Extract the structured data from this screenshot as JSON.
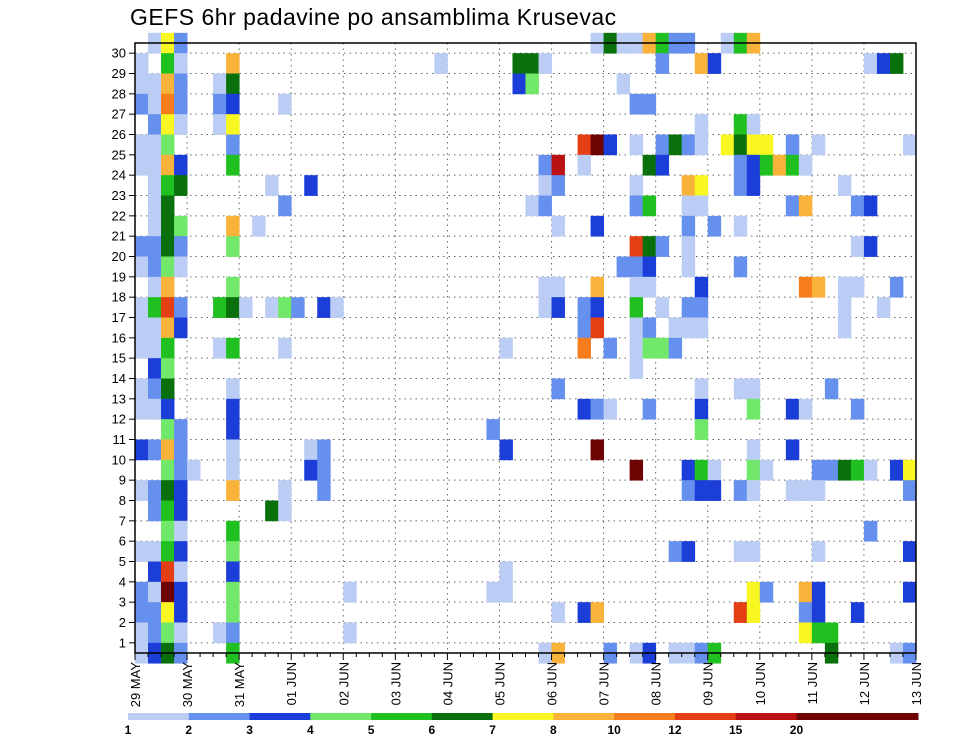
{
  "chart_data": {
    "type": "heatmap",
    "title": "GEFS 6hr padavine po ansamblima Krusevac",
    "xlabel": "",
    "ylabel": "",
    "x_tick_labels": [
      "29 MAY",
      "30 MAY",
      "31 MAY",
      "01 JUN",
      "02 JUN",
      "03 JUN",
      "04 JUN",
      "05 JUN",
      "06 JUN",
      "07 JUN",
      "08 JUN",
      "09 JUN",
      "10 JUN",
      "11 JUN",
      "12 JUN",
      "13 JUN"
    ],
    "y_tick_labels": [
      "1",
      "2",
      "3",
      "4",
      "5",
      "6",
      "7",
      "8",
      "9",
      "10",
      "11",
      "12",
      "13",
      "14",
      "15",
      "16",
      "17",
      "18",
      "19",
      "20",
      "21",
      "22",
      "23",
      "24",
      "25",
      "26",
      "27",
      "28",
      "29",
      "30"
    ],
    "columns_per_day": 4,
    "time_steps": 60,
    "members": 30,
    "grid": true,
    "legend_position": "bottom",
    "levels": [
      {
        "label": "1",
        "color": "#bccdf5"
      },
      {
        "label": "2",
        "color": "#6690ee"
      },
      {
        "label": "3",
        "color": "#1c3ed8"
      },
      {
        "label": "4",
        "color": "#72e86a"
      },
      {
        "label": "5",
        "color": "#1fc020"
      },
      {
        "label": "6",
        "color": "#0a700b"
      },
      {
        "label": "7",
        "color": "#f9f721"
      },
      {
        "label": "8",
        "color": "#f9b23a"
      },
      {
        "label": "10",
        "color": "#f67d1b"
      },
      {
        "label": "12",
        "color": "#e43e14"
      },
      {
        "label": "15",
        "color": "#ba1212"
      },
      {
        "label": "20",
        "color": "#6d0303"
      },
      {
        "label": "",
        "color": "#6d0303"
      }
    ],
    "cells": [
      [
        1,
        30,
        0
      ],
      [
        2,
        30,
        6
      ],
      [
        3,
        30,
        1
      ],
      [
        35,
        30,
        0
      ],
      [
        36,
        30,
        5
      ],
      [
        37,
        30,
        0
      ],
      [
        38,
        30,
        0
      ],
      [
        39,
        30,
        7
      ],
      [
        40,
        30,
        4
      ],
      [
        41,
        30,
        1
      ],
      [
        42,
        30,
        1
      ],
      [
        45,
        30,
        0
      ],
      [
        46,
        30,
        4
      ],
      [
        47,
        30,
        7
      ],
      [
        0,
        29,
        0
      ],
      [
        2,
        29,
        4
      ],
      [
        3,
        29,
        0
      ],
      [
        7,
        29,
        7
      ],
      [
        23,
        29,
        0
      ],
      [
        29,
        29,
        5
      ],
      [
        30,
        29,
        5
      ],
      [
        31,
        29,
        0
      ],
      [
        40,
        29,
        1
      ],
      [
        43,
        29,
        7
      ],
      [
        44,
        29,
        2
      ],
      [
        56,
        29,
        0
      ],
      [
        57,
        29,
        2
      ],
      [
        58,
        29,
        5
      ],
      [
        0,
        28,
        0
      ],
      [
        1,
        28,
        0
      ],
      [
        2,
        28,
        7
      ],
      [
        3,
        28,
        1
      ],
      [
        6,
        28,
        0
      ],
      [
        7,
        28,
        5
      ],
      [
        29,
        28,
        2
      ],
      [
        30,
        28,
        3
      ],
      [
        37,
        28,
        0
      ],
      [
        0,
        27,
        1
      ],
      [
        1,
        27,
        0
      ],
      [
        2,
        27,
        8
      ],
      [
        3,
        27,
        1
      ],
      [
        6,
        27,
        1
      ],
      [
        7,
        27,
        2
      ],
      [
        11,
        27,
        0
      ],
      [
        38,
        27,
        1
      ],
      [
        39,
        27,
        1
      ],
      [
        1,
        26,
        1
      ],
      [
        2,
        26,
        6
      ],
      [
        3,
        26,
        0
      ],
      [
        6,
        26,
        0
      ],
      [
        7,
        26,
        6
      ],
      [
        43,
        26,
        0
      ],
      [
        46,
        26,
        4
      ],
      [
        47,
        26,
        0
      ],
      [
        0,
        25,
        0
      ],
      [
        1,
        25,
        0
      ],
      [
        2,
        25,
        3
      ],
      [
        7,
        25,
        1
      ],
      [
        34,
        25,
        9
      ],
      [
        35,
        25,
        11
      ],
      [
        36,
        25,
        2
      ],
      [
        38,
        25,
        0
      ],
      [
        40,
        25,
        1
      ],
      [
        41,
        25,
        5
      ],
      [
        42,
        25,
        1
      ],
      [
        43,
        25,
        0
      ],
      [
        45,
        25,
        6
      ],
      [
        46,
        25,
        5
      ],
      [
        47,
        25,
        6
      ],
      [
        48,
        25,
        6
      ],
      [
        50,
        25,
        1
      ],
      [
        52,
        25,
        0
      ],
      [
        59,
        25,
        0
      ],
      [
        0,
        24,
        0
      ],
      [
        1,
        24,
        0
      ],
      [
        2,
        24,
        7
      ],
      [
        3,
        24,
        2
      ],
      [
        7,
        24,
        4
      ],
      [
        31,
        24,
        1
      ],
      [
        32,
        24,
        10
      ],
      [
        34,
        24,
        0
      ],
      [
        39,
        24,
        5
      ],
      [
        40,
        24,
        2
      ],
      [
        46,
        24,
        1
      ],
      [
        47,
        24,
        2
      ],
      [
        48,
        24,
        4
      ],
      [
        49,
        24,
        7
      ],
      [
        50,
        24,
        4
      ],
      [
        51,
        24,
        0
      ],
      [
        1,
        23,
        0
      ],
      [
        2,
        23,
        4
      ],
      [
        3,
        23,
        5
      ],
      [
        10,
        23,
        0
      ],
      [
        13,
        23,
        2
      ],
      [
        31,
        23,
        0
      ],
      [
        32,
        23,
        1
      ],
      [
        38,
        23,
        0
      ],
      [
        42,
        23,
        7
      ],
      [
        43,
        23,
        6
      ],
      [
        46,
        23,
        1
      ],
      [
        47,
        23,
        2
      ],
      [
        54,
        23,
        0
      ],
      [
        1,
        22,
        0
      ],
      [
        2,
        22,
        5
      ],
      [
        11,
        22,
        1
      ],
      [
        30,
        22,
        0
      ],
      [
        31,
        22,
        1
      ],
      [
        38,
        22,
        1
      ],
      [
        39,
        22,
        4
      ],
      [
        42,
        22,
        0
      ],
      [
        43,
        22,
        0
      ],
      [
        50,
        22,
        1
      ],
      [
        51,
        22,
        7
      ],
      [
        55,
        22,
        1
      ],
      [
        56,
        22,
        2
      ],
      [
        1,
        21,
        0
      ],
      [
        2,
        21,
        5
      ],
      [
        3,
        21,
        3
      ],
      [
        7,
        21,
        7
      ],
      [
        9,
        21,
        0
      ],
      [
        32,
        21,
        0
      ],
      [
        35,
        21,
        2
      ],
      [
        42,
        21,
        1
      ],
      [
        44,
        21,
        1
      ],
      [
        46,
        21,
        0
      ],
      [
        0,
        20,
        1
      ],
      [
        1,
        20,
        1
      ],
      [
        2,
        20,
        5
      ],
      [
        3,
        20,
        1
      ],
      [
        7,
        20,
        3
      ],
      [
        38,
        20,
        9
      ],
      [
        39,
        20,
        5
      ],
      [
        40,
        20,
        1
      ],
      [
        42,
        20,
        0
      ],
      [
        55,
        20,
        0
      ],
      [
        56,
        20,
        2
      ],
      [
        0,
        19,
        0
      ],
      [
        1,
        19,
        1
      ],
      [
        2,
        19,
        3
      ],
      [
        3,
        19,
        0
      ],
      [
        37,
        19,
        1
      ],
      [
        38,
        19,
        1
      ],
      [
        39,
        19,
        2
      ],
      [
        42,
        19,
        0
      ],
      [
        46,
        19,
        1
      ],
      [
        1,
        18,
        0
      ],
      [
        2,
        18,
        7
      ],
      [
        7,
        18,
        3
      ],
      [
        31,
        18,
        0
      ],
      [
        32,
        18,
        0
      ],
      [
        35,
        18,
        7
      ],
      [
        38,
        18,
        0
      ],
      [
        39,
        18,
        0
      ],
      [
        43,
        18,
        2
      ],
      [
        51,
        18,
        8
      ],
      [
        52,
        18,
        7
      ],
      [
        54,
        18,
        0
      ],
      [
        55,
        18,
        0
      ],
      [
        58,
        18,
        1
      ],
      [
        0,
        17,
        0
      ],
      [
        1,
        17,
        4
      ],
      [
        2,
        17,
        9
      ],
      [
        3,
        17,
        1
      ],
      [
        6,
        17,
        4
      ],
      [
        7,
        17,
        5
      ],
      [
        8,
        17,
        0
      ],
      [
        10,
        17,
        0
      ],
      [
        11,
        17,
        3
      ],
      [
        12,
        17,
        1
      ],
      [
        14,
        17,
        2
      ],
      [
        15,
        17,
        0
      ],
      [
        31,
        17,
        0
      ],
      [
        32,
        17,
        2
      ],
      [
        34,
        17,
        1
      ],
      [
        35,
        17,
        2
      ],
      [
        38,
        17,
        4
      ],
      [
        40,
        17,
        0
      ],
      [
        42,
        17,
        1
      ],
      [
        43,
        17,
        1
      ],
      [
        54,
        17,
        0
      ],
      [
        57,
        17,
        0
      ],
      [
        0,
        16,
        0
      ],
      [
        1,
        16,
        0
      ],
      [
        2,
        16,
        7
      ],
      [
        3,
        16,
        2
      ],
      [
        34,
        16,
        1
      ],
      [
        35,
        16,
        9
      ],
      [
        38,
        16,
        0
      ],
      [
        39,
        16,
        1
      ],
      [
        41,
        16,
        0
      ],
      [
        42,
        16,
        0
      ],
      [
        43,
        16,
        0
      ],
      [
        54,
        16,
        0
      ],
      [
        0,
        15,
        0
      ],
      [
        1,
        15,
        0
      ],
      [
        2,
        15,
        4
      ],
      [
        6,
        15,
        0
      ],
      [
        7,
        15,
        4
      ],
      [
        11,
        15,
        0
      ],
      [
        28,
        15,
        0
      ],
      [
        34,
        15,
        8
      ],
      [
        36,
        15,
        1
      ],
      [
        38,
        15,
        0
      ],
      [
        39,
        15,
        3
      ],
      [
        40,
        15,
        3
      ],
      [
        41,
        15,
        1
      ],
      [
        1,
        14,
        2
      ],
      [
        2,
        14,
        3
      ],
      [
        38,
        14,
        0
      ],
      [
        0,
        13,
        0
      ],
      [
        1,
        13,
        1
      ],
      [
        2,
        13,
        5
      ],
      [
        7,
        13,
        0
      ],
      [
        32,
        13,
        1
      ],
      [
        43,
        13,
        0
      ],
      [
        46,
        13,
        0
      ],
      [
        47,
        13,
        0
      ],
      [
        53,
        13,
        1
      ],
      [
        0,
        12,
        0
      ],
      [
        1,
        12,
        0
      ],
      [
        2,
        12,
        2
      ],
      [
        7,
        12,
        2
      ],
      [
        34,
        12,
        2
      ],
      [
        35,
        12,
        1
      ],
      [
        36,
        12,
        0
      ],
      [
        39,
        12,
        1
      ],
      [
        43,
        12,
        2
      ],
      [
        47,
        12,
        3
      ],
      [
        50,
        12,
        2
      ],
      [
        51,
        12,
        0
      ],
      [
        55,
        12,
        1
      ],
      [
        2,
        11,
        3
      ],
      [
        3,
        11,
        1
      ],
      [
        7,
        11,
        2
      ],
      [
        27,
        11,
        1
      ],
      [
        43,
        11,
        3
      ],
      [
        0,
        10,
        2
      ],
      [
        1,
        10,
        1
      ],
      [
        2,
        10,
        7
      ],
      [
        3,
        10,
        1
      ],
      [
        7,
        10,
        0
      ],
      [
        13,
        10,
        0
      ],
      [
        14,
        10,
        1
      ],
      [
        28,
        10,
        2
      ],
      [
        35,
        10,
        11
      ],
      [
        47,
        10,
        0
      ],
      [
        50,
        10,
        2
      ],
      [
        2,
        9,
        3
      ],
      [
        3,
        9,
        1
      ],
      [
        4,
        9,
        0
      ],
      [
        7,
        9,
        0
      ],
      [
        13,
        9,
        2
      ],
      [
        14,
        9,
        1
      ],
      [
        38,
        9,
        11
      ],
      [
        42,
        9,
        2
      ],
      [
        43,
        9,
        4
      ],
      [
        44,
        9,
        0
      ],
      [
        47,
        9,
        3
      ],
      [
        48,
        9,
        0
      ],
      [
        52,
        9,
        1
      ],
      [
        53,
        9,
        1
      ],
      [
        54,
        9,
        5
      ],
      [
        55,
        9,
        4
      ],
      [
        56,
        9,
        0
      ],
      [
        58,
        9,
        2
      ],
      [
        59,
        9,
        6
      ],
      [
        0,
        8,
        0
      ],
      [
        1,
        8,
        1
      ],
      [
        2,
        8,
        5
      ],
      [
        3,
        8,
        2
      ],
      [
        7,
        8,
        7
      ],
      [
        11,
        8,
        0
      ],
      [
        14,
        8,
        1
      ],
      [
        42,
        8,
        1
      ],
      [
        43,
        8,
        2
      ],
      [
        44,
        8,
        2
      ],
      [
        46,
        8,
        1
      ],
      [
        47,
        8,
        0
      ],
      [
        50,
        8,
        0
      ],
      [
        51,
        8,
        0
      ],
      [
        52,
        8,
        0
      ],
      [
        59,
        8,
        1
      ],
      [
        1,
        7,
        1
      ],
      [
        2,
        7,
        4
      ],
      [
        3,
        7,
        2
      ],
      [
        10,
        7,
        5
      ],
      [
        11,
        7,
        0
      ],
      [
        2,
        6,
        3
      ],
      [
        3,
        6,
        0
      ],
      [
        7,
        6,
        4
      ],
      [
        56,
        6,
        1
      ],
      [
        0,
        5,
        0
      ],
      [
        1,
        5,
        0
      ],
      [
        2,
        5,
        4
      ],
      [
        3,
        5,
        2
      ],
      [
        7,
        5,
        3
      ],
      [
        41,
        5,
        1
      ],
      [
        42,
        5,
        2
      ],
      [
        46,
        5,
        0
      ],
      [
        47,
        5,
        0
      ],
      [
        52,
        5,
        0
      ],
      [
        59,
        5,
        2
      ],
      [
        1,
        4,
        2
      ],
      [
        2,
        4,
        9
      ],
      [
        3,
        4,
        0
      ],
      [
        7,
        4,
        2
      ],
      [
        28,
        4,
        0
      ],
      [
        0,
        3,
        1
      ],
      [
        1,
        3,
        0
      ],
      [
        2,
        3,
        11
      ],
      [
        3,
        3,
        2
      ],
      [
        7,
        3,
        3
      ],
      [
        16,
        3,
        0
      ],
      [
        27,
        3,
        0
      ],
      [
        28,
        3,
        0
      ],
      [
        47,
        3,
        6
      ],
      [
        48,
        3,
        1
      ],
      [
        51,
        3,
        7
      ],
      [
        52,
        3,
        2
      ],
      [
        59,
        3,
        2
      ],
      [
        0,
        2,
        1
      ],
      [
        1,
        2,
        1
      ],
      [
        2,
        2,
        6
      ],
      [
        3,
        2,
        2
      ],
      [
        7,
        2,
        3
      ],
      [
        32,
        2,
        0
      ],
      [
        34,
        2,
        2
      ],
      [
        35,
        2,
        7
      ],
      [
        46,
        2,
        9
      ],
      [
        47,
        2,
        6
      ],
      [
        51,
        2,
        1
      ],
      [
        52,
        2,
        2
      ],
      [
        55,
        2,
        2
      ],
      [
        0,
        1,
        0
      ],
      [
        1,
        1,
        1
      ],
      [
        2,
        1,
        3
      ],
      [
        3,
        1,
        0
      ],
      [
        6,
        1,
        0
      ],
      [
        7,
        1,
        1
      ],
      [
        16,
        1,
        0
      ],
      [
        51,
        1,
        6
      ],
      [
        52,
        1,
        4
      ],
      [
        53,
        1,
        4
      ],
      [
        0,
        0,
        0
      ],
      [
        1,
        0,
        2
      ],
      [
        2,
        0,
        5
      ],
      [
        3,
        0,
        1
      ],
      [
        7,
        0,
        4
      ],
      [
        31,
        0,
        0
      ],
      [
        32,
        0,
        7
      ],
      [
        36,
        0,
        1
      ],
      [
        38,
        0,
        0
      ],
      [
        39,
        0,
        2
      ],
      [
        41,
        0,
        0
      ],
      [
        42,
        0,
        0
      ],
      [
        43,
        0,
        1
      ],
      [
        44,
        0,
        4
      ],
      [
        53,
        0,
        5
      ],
      [
        58,
        0,
        0
      ],
      [
        59,
        0,
        1
      ]
    ]
  }
}
